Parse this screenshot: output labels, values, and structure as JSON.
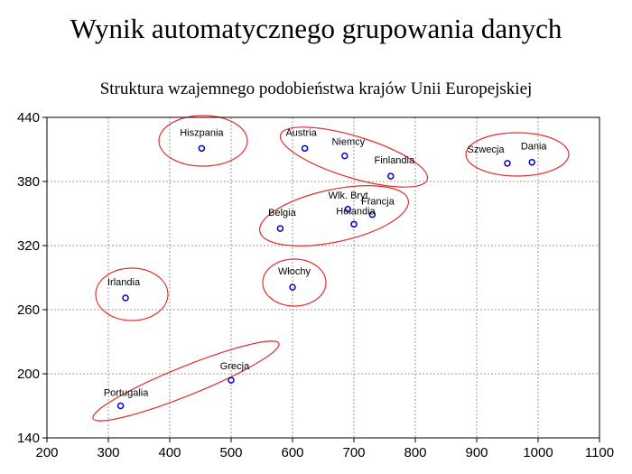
{
  "slide": {
    "title": "Wynik automatycznego grupowania danych"
  },
  "chart_data": {
    "type": "scatter",
    "title": "Struktura wzajemnego podobieństwa krajów Unii Europejskiej",
    "xlabel": "",
    "ylabel": "",
    "xlim": [
      200,
      1100
    ],
    "ylim": [
      140,
      440
    ],
    "xticks": [
      200,
      300,
      400,
      500,
      600,
      700,
      800,
      900,
      1000,
      1100
    ],
    "yticks": [
      140,
      200,
      260,
      320,
      380,
      440
    ],
    "grid": true,
    "point_color": "#0000cc",
    "cluster_color": "#e03030",
    "points": [
      {
        "label": "Hiszpania",
        "x": 452,
        "y": 411
      },
      {
        "label": "Austria",
        "x": 620,
        "y": 411
      },
      {
        "label": "Niemcy",
        "x": 685,
        "y": 404
      },
      {
        "label": "Finlandia",
        "x": 760,
        "y": 385
      },
      {
        "label": "Szwecja",
        "x": 950,
        "y": 397
      },
      {
        "label": "Dania",
        "x": 990,
        "y": 398
      },
      {
        "label": "Wlk. Bryt.",
        "x": 690,
        "y": 354
      },
      {
        "label": "Francja",
        "x": 730,
        "y": 349
      },
      {
        "label": "Holandia",
        "x": 700,
        "y": 340
      },
      {
        "label": "Belgia",
        "x": 580,
        "y": 336
      },
      {
        "label": "Włochy",
        "x": 600,
        "y": 281
      },
      {
        "label": "Irlandia",
        "x": 328,
        "y": 271
      },
      {
        "label": "Grecja",
        "x": 500,
        "y": 194
      },
      {
        "label": "Portugalia",
        "x": 320,
        "y": 170
      }
    ],
    "clusters": [
      {
        "members": [
          "Hiszpania"
        ]
      },
      {
        "members": [
          "Austria",
          "Niemcy",
          "Finlandia"
        ]
      },
      {
        "members": [
          "Szwecja",
          "Dania"
        ]
      },
      {
        "members": [
          "Wlk. Bryt.",
          "Francja",
          "Holandia",
          "Belgia"
        ]
      },
      {
        "members": [
          "Włochy"
        ]
      },
      {
        "members": [
          "Irlandia"
        ]
      },
      {
        "members": [
          "Grecja",
          "Portugalia"
        ]
      }
    ]
  }
}
